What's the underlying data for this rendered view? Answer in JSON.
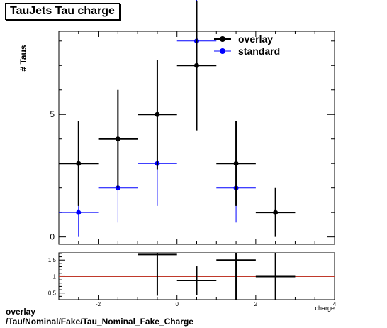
{
  "title": "TauJets Tau charge",
  "footer": {
    "line1": "overlay",
    "line2": "/Tau/Nominal/Fake/Tau_Nominal_Fake_Charge"
  },
  "chart_data": [
    {
      "type": "scatter",
      "title": "TauJets Tau charge",
      "ylabel": "# Taus",
      "xlabel": "charge",
      "xlim": [
        -3,
        4
      ],
      "ylim": [
        -0.3,
        8.4
      ],
      "y_tick_labels": [
        "0",
        "5"
      ],
      "legend": {
        "placement": "top-right",
        "entries": [
          "overlay",
          "standard"
        ]
      },
      "series": [
        {
          "name": "overlay",
          "color": "#000000",
          "points": [
            {
              "x": -2.5,
              "y": 3,
              "xerr": 0.5,
              "yerr_low": 1.73,
              "yerr_high": 1.73
            },
            {
              "x": -1.5,
              "y": 4,
              "xerr": 0.5,
              "yerr_low": 2.0,
              "yerr_high": 2.0
            },
            {
              "x": -0.5,
              "y": 5,
              "xerr": 0.5,
              "yerr_low": 2.24,
              "yerr_high": 2.24
            },
            {
              "x": 0.5,
              "y": 7,
              "xerr": 0.5,
              "yerr_low": 2.65,
              "yerr_high": 2.65
            },
            {
              "x": 1.5,
              "y": 3,
              "xerr": 0.5,
              "yerr_low": 1.73,
              "yerr_high": 1.73
            },
            {
              "x": 2.5,
              "y": 1,
              "xerr": 0.5,
              "yerr_low": 1.0,
              "yerr_high": 1.0
            }
          ]
        },
        {
          "name": "standard",
          "color": "#0000ff",
          "points": [
            {
              "x": -2.5,
              "y": 1,
              "xerr": 0.5,
              "yerr_low": 1.0,
              "yerr_high": 1.0
            },
            {
              "x": -1.5,
              "y": 2,
              "xerr": 0.5,
              "yerr_low": 1.41,
              "yerr_high": 1.41
            },
            {
              "x": -0.5,
              "y": 3,
              "xerr": 0.5,
              "yerr_low": 1.73,
              "yerr_high": 1.73
            },
            {
              "x": 0.5,
              "y": 8,
              "xerr": 0.5,
              "yerr_low": 2.83,
              "yerr_high": 2.83
            },
            {
              "x": 1.5,
              "y": 2,
              "xerr": 0.5,
              "yerr_low": 1.41,
              "yerr_high": 1.41
            }
          ]
        }
      ]
    },
    {
      "type": "scatter",
      "title": "ratio",
      "xlim": [
        -3,
        4
      ],
      "ylim": [
        0.3,
        1.72
      ],
      "x_ticks": [
        -2,
        0,
        2,
        4
      ],
      "y_ticks": [
        0.5,
        1,
        1.5
      ],
      "reference_line": {
        "y": 1,
        "color": "#c0392b"
      },
      "points": [
        {
          "x": -0.5,
          "y": 1.67,
          "xerr": 0.5,
          "yerr_low": 1.25,
          "yerr_high": 1.25
        },
        {
          "x": 0.5,
          "y": 0.88,
          "xerr": 0.5,
          "yerr_low": 0.43,
          "yerr_high": 0.43
        },
        {
          "x": 1.5,
          "y": 1.5,
          "xerr": 0.5,
          "yerr_low": 1.37,
          "yerr_high": 1.37
        },
        {
          "x": 2.5,
          "y": 1.0,
          "xerr": 0.5,
          "yerr_low": 1.0,
          "yerr_high": 1.0
        }
      ]
    }
  ]
}
